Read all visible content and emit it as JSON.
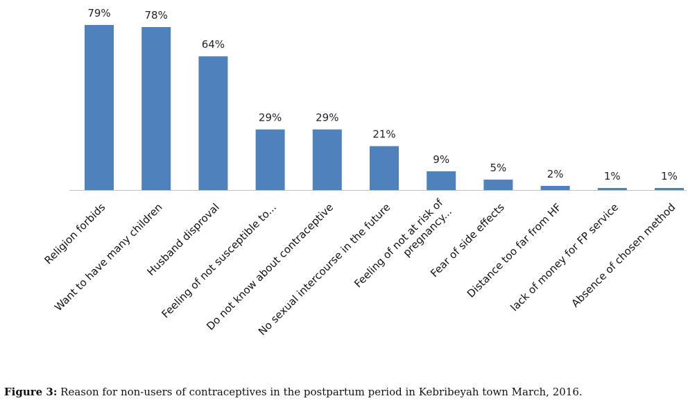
{
  "chart_data": {
    "type": "bar",
    "categories": [
      "Religion forbids",
      "Want to have many children",
      "Husband disproval",
      "Feeling of not susceptible to...",
      "Do not know about contraceptive",
      "No sexual intercourse in the future",
      [
        "Feeling of not at risk of",
        "pregnancy..."
      ],
      "Fear of side effects",
      "Distance too far from HF",
      "lack of money for FP service",
      "Absence of chosen method"
    ],
    "values": [
      79,
      78,
      64,
      29,
      29,
      21,
      9,
      5,
      2,
      1,
      1
    ],
    "data_labels": [
      "79%",
      "78%",
      "64%",
      "29%",
      "29%",
      "21%",
      "9%",
      "5%",
      "2%",
      "1%",
      "1%"
    ],
    "ylim": [
      0,
      80
    ],
    "bar_color": "#4f81bd",
    "grid": false,
    "legend": "none"
  },
  "caption": {
    "label": "Figure 3:",
    "text": " Reason for non-users of contraceptives in the postpartum period in Kebribeyah town March, 2016."
  }
}
